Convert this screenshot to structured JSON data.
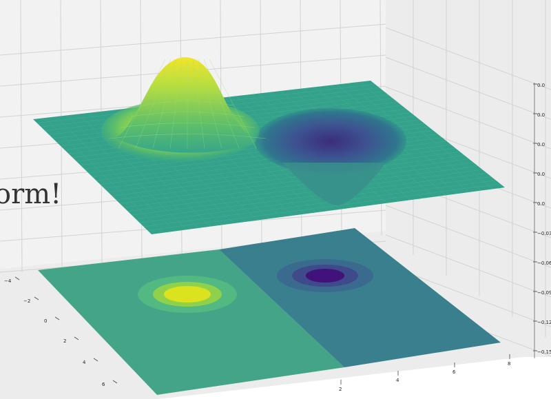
{
  "chart_data": {
    "type": "surface3d",
    "title": "",
    "overlay_text": "orm!",
    "x_ticks": [
      "−4",
      "−2",
      "0",
      "2",
      "4",
      "6"
    ],
    "y_ticks": [
      "2",
      "4",
      "6",
      "8"
    ],
    "z_ticks": [
      "0.0",
      "0.0",
      "0.0",
      "0.0",
      "0.0",
      "−0.03",
      "−0.06",
      "−0.094",
      "−0.122",
      "−0.150"
    ],
    "surface": {
      "function": "gaussian peak and trough",
      "peak": {
        "center": [
          -2,
          -2
        ],
        "height": 0.15
      },
      "trough": {
        "center": [
          2,
          2
        ],
        "depth": -0.1
      },
      "colormap": "viridis"
    },
    "contour": {
      "offset": -0.15,
      "levels": 5,
      "left_region_color": "#44a488",
      "right_region_color": "#3a7f8e"
    },
    "colors": {
      "pane_left": "#f2f2f2",
      "pane_back": "#ececec",
      "grid": "#d2d2d2",
      "peak_top": "#f5e626",
      "trough_bottom": "#3b0f70"
    }
  }
}
